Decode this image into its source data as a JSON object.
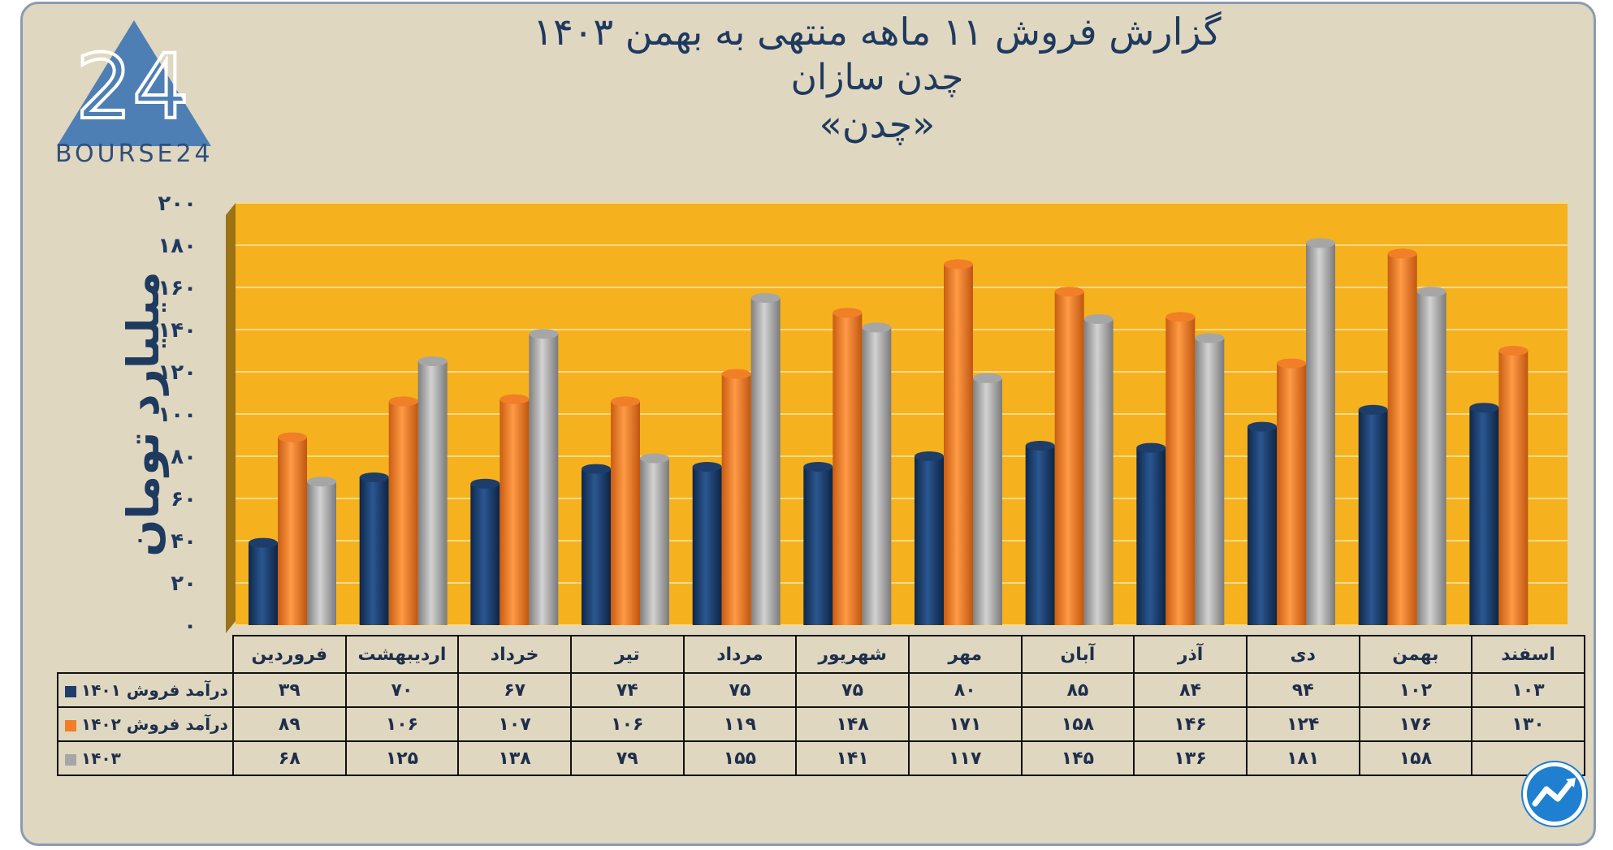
{
  "title": {
    "line1": "گزارش  فروش ۱۱ ماهه منتهی به بهمن ۱۴۰۳",
    "line2": "چدن سازان",
    "line3": "«چدن»"
  },
  "logo": {
    "text": "BOURSE24"
  },
  "chart_data": {
    "type": "bar",
    "ylabel": "میلیارد تومان",
    "ylim": [
      0,
      200
    ],
    "yticks": [
      "۰",
      "۲۰",
      "۴۰",
      "۶۰",
      "۸۰",
      "۱۰۰",
      "۱۲۰",
      "۱۴۰",
      "۱۶۰",
      "۱۸۰",
      "۲۰۰"
    ],
    "categories": [
      "فروردین",
      "اردیبهشت",
      "خرداد",
      "تیر",
      "مرداد",
      "شهریور",
      "مهر",
      "آبان",
      "آذر",
      "دی",
      "بهمن",
      "اسفند"
    ],
    "series": [
      {
        "name": "درآمد فروش ۱۴۰۱",
        "color": "#1d3e6b",
        "values": [
          39,
          70,
          67,
          74,
          75,
          75,
          80,
          85,
          84,
          94,
          102,
          103
        ],
        "labels": [
          "۳۹",
          "۷۰",
          "۶۷",
          "۷۴",
          "۷۵",
          "۷۵",
          "۸۰",
          "۸۵",
          "۸۴",
          "۹۴",
          "۱۰۲",
          "۱۰۳"
        ]
      },
      {
        "name": "درآمد فروش ۱۴۰۲",
        "color": "#f07f28",
        "values": [
          89,
          106,
          107,
          106,
          119,
          148,
          171,
          158,
          146,
          124,
          176,
          130
        ],
        "labels": [
          "۸۹",
          "۱۰۶",
          "۱۰۷",
          "۱۰۶",
          "۱۱۹",
          "۱۴۸",
          "۱۷۱",
          "۱۵۸",
          "۱۴۶",
          "۱۲۴",
          "۱۷۶",
          "۱۳۰"
        ]
      },
      {
        "name": "۱۴۰۳",
        "color": "#a6a6a6",
        "values": [
          68,
          125,
          138,
          79,
          155,
          141,
          117,
          145,
          136,
          181,
          158,
          null
        ],
        "labels": [
          "۶۸",
          "۱۲۵",
          "۱۳۸",
          "۷۹",
          "۱۵۵",
          "۱۴۱",
          "۱۱۷",
          "۱۴۵",
          "۱۳۶",
          "۱۸۱",
          "۱۵۸",
          ""
        ]
      }
    ],
    "plot_background": "#f5b21e",
    "grid": true,
    "legend": "table-bottom-left"
  }
}
